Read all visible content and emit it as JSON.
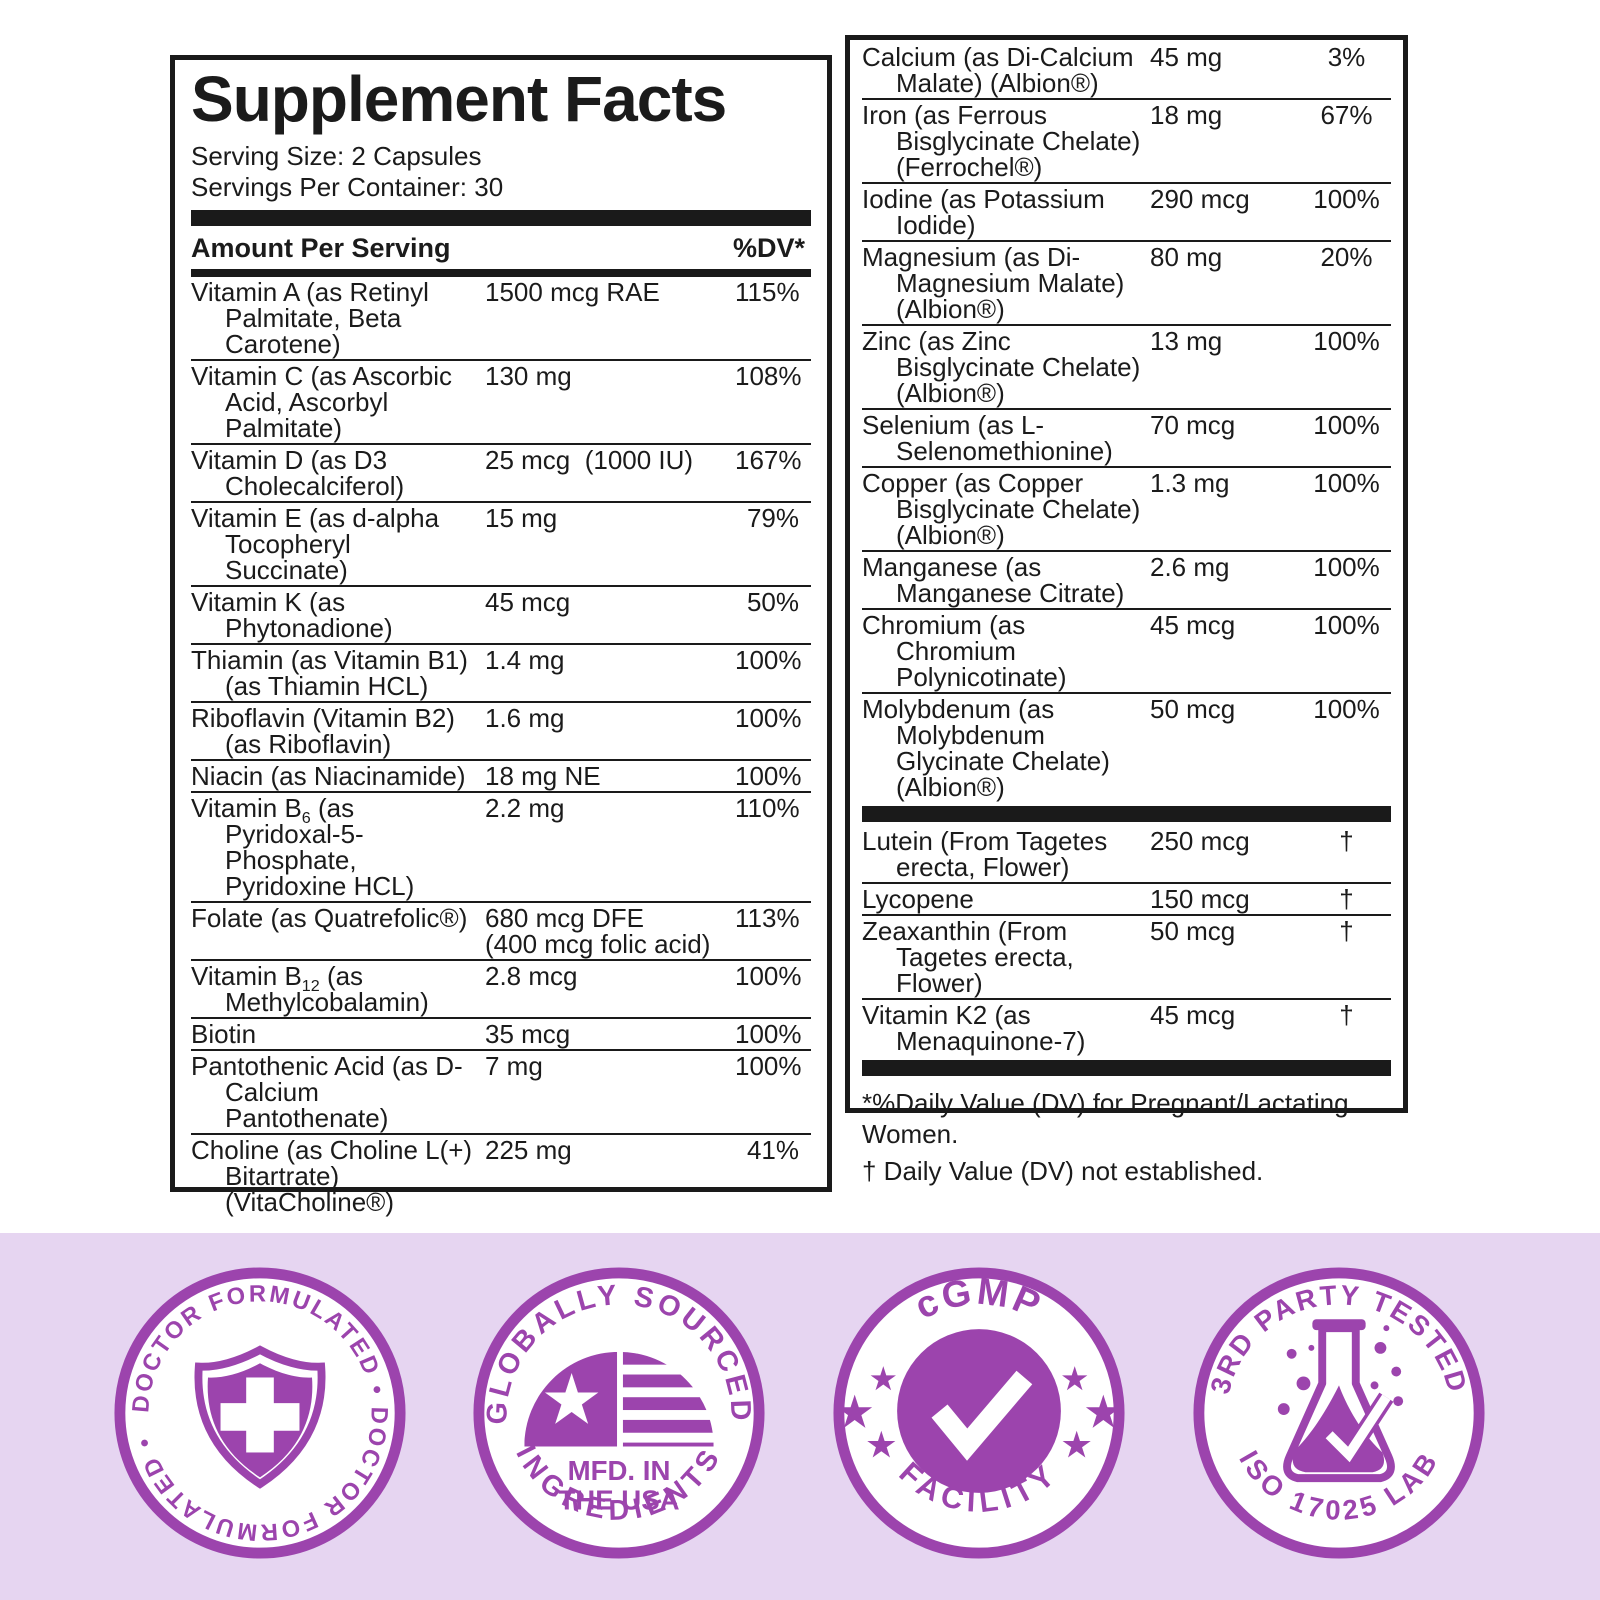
{
  "colors": {
    "purple": "#9c44ad",
    "band_bg": "#e6d5f1",
    "ink": "#1a1a1a"
  },
  "panel_left": {
    "title": "Supplement Facts",
    "serving_size": "Serving Size: 2 Capsules",
    "servings_per_container": "Servings Per Container: 30",
    "header": {
      "amount_label": "Amount Per Serving",
      "dv_label": "%DV*"
    },
    "rows": [
      {
        "name": [
          "Vitamin A (as Retinyl",
          "Palmitate, Beta",
          "Carotene)"
        ],
        "amount": "1500 mcg RAE",
        "dv": "115%"
      },
      {
        "name": [
          "Vitamin C (as Ascorbic",
          "Acid, Ascorbyl",
          "Palmitate)"
        ],
        "amount": "130 mg",
        "dv": "108%"
      },
      {
        "name": [
          "Vitamin D (as D3",
          "Cholecalciferol)"
        ],
        "amount": "25 mcg  (1000 IU)",
        "dv": "167%"
      },
      {
        "name": [
          "Vitamin E (as d-alpha",
          "Tocopheryl",
          "Succinate)"
        ],
        "amount": "15 mg",
        "dv": "79%"
      },
      {
        "name": [
          "Vitamin K (as",
          "Phytonadione)"
        ],
        "amount": "45 mcg",
        "dv": "50%"
      },
      {
        "name": [
          "Thiamin (as Vitamin B1)",
          "(as Thiamin HCL)"
        ],
        "amount": "1.4 mg",
        "dv": "100%"
      },
      {
        "name": [
          "Riboflavin (Vitamin B2)",
          "(as Riboflavin)"
        ],
        "amount": "1.6 mg",
        "dv": "100%"
      },
      {
        "name": [
          "Niacin (as Niacinamide)"
        ],
        "amount": "18 mg NE",
        "dv": "100%"
      },
      {
        "name": [
          "Vitamin B{6} (as",
          "Pyridoxal-5-",
          "Phosphate,",
          "Pyridoxine HCL)"
        ],
        "amount": "2.2 mg",
        "dv": "110%"
      },
      {
        "name": [
          "Folate (as Quatrefolic®)"
        ],
        "amount": [
          "680 mcg DFE",
          "(400 mcg folic acid)"
        ],
        "dv": "113%"
      },
      {
        "name": [
          "Vitamin B{12} (as",
          "Methylcobalamin)"
        ],
        "amount": "2.8 mcg",
        "dv": "100%"
      },
      {
        "name": [
          "Biotin"
        ],
        "amount": "35 mcg",
        "dv": "100%"
      },
      {
        "name": [
          "Pantothenic Acid (as D-",
          "Calcium",
          "Pantothenate)"
        ],
        "amount": "7 mg",
        "dv": "100%"
      },
      {
        "name": [
          "Choline (as Choline L(+)",
          "Bitartrate)",
          "(VitaCholine®)"
        ],
        "amount": "225 mg",
        "dv": "41%"
      }
    ]
  },
  "panel_right": {
    "rows_minerals": [
      {
        "name": [
          "Calcium (as Di-Calcium",
          "Malate) (Albion®)"
        ],
        "amount": "45 mg",
        "dv": "3%"
      },
      {
        "name": [
          "Iron (as Ferrous",
          "Bisglycinate Chelate)",
          "(Ferrochel®)"
        ],
        "amount": "18 mg",
        "dv": "67%"
      },
      {
        "name": [
          "Iodine (as Potassium",
          "Iodide)"
        ],
        "amount": "290 mcg",
        "dv": "100%"
      },
      {
        "name": [
          "Magnesium (as Di-",
          "Magnesium Malate)",
          "(Albion®)"
        ],
        "amount": "80 mg",
        "dv": "20%"
      },
      {
        "name": [
          "Zinc (as Zinc",
          "Bisglycinate Chelate)",
          "(Albion®)"
        ],
        "amount": "13 mg",
        "dv": "100%"
      },
      {
        "name": [
          "Selenium (as L-",
          "Selenomethionine)"
        ],
        "amount": "70 mcg",
        "dv": "100%"
      },
      {
        "name": [
          "Copper (as Copper",
          "Bisglycinate Chelate)",
          "(Albion®)"
        ],
        "amount": "1.3 mg",
        "dv": "100%"
      },
      {
        "name": [
          "Manganese (as",
          "Manganese Citrate)"
        ],
        "amount": "2.6 mg",
        "dv": "100%"
      },
      {
        "name": [
          "Chromium (as",
          "Chromium",
          "Polynicotinate)"
        ],
        "amount": "45 mcg",
        "dv": "100%"
      },
      {
        "name": [
          "Molybdenum (as",
          "Molybdenum",
          "Glycinate Chelate)",
          "(Albion®)"
        ],
        "amount": "50 mcg",
        "dv": "100%"
      }
    ],
    "rows_other": [
      {
        "name": [
          "Lutein (From Tagetes",
          "erecta, Flower)"
        ],
        "amount": "250 mcg",
        "dv": "†"
      },
      {
        "name": [
          "Lycopene"
        ],
        "amount": "150 mcg",
        "dv": "†"
      },
      {
        "name": [
          "Zeaxanthin (From",
          "Tagetes erecta,",
          "Flower)"
        ],
        "amount": "50 mcg",
        "dv": "†"
      },
      {
        "name": [
          "Vitamin K2 (as",
          "Menaquinone-7)"
        ],
        "amount": "45 mcg",
        "dv": "†"
      }
    ],
    "footnotes": {
      "dv": "*%Daily Value (DV) for Pregnant/Lactating Women.",
      "dagger": "† Daily Value (DV) not established."
    }
  },
  "badges": [
    {
      "name": "doctor-formulated",
      "arc_text": "DOCTOR FORMULATED • DOCTOR FORMULATED •"
    },
    {
      "name": "globally-sourced-ingredients",
      "top_text": "GLOBALLY SOURCED",
      "bottom_text": "INGREDIENTS",
      "center_top": "MFD. IN",
      "center_bottom": "THE USA"
    },
    {
      "name": "cgmp-facility",
      "top_text": "cGMP",
      "bottom_text": "FACILITY"
    },
    {
      "name": "third-party-tested",
      "top_text": "3RD PARTY TESTED",
      "bottom_text": "ISO 17025 LAB"
    }
  ]
}
